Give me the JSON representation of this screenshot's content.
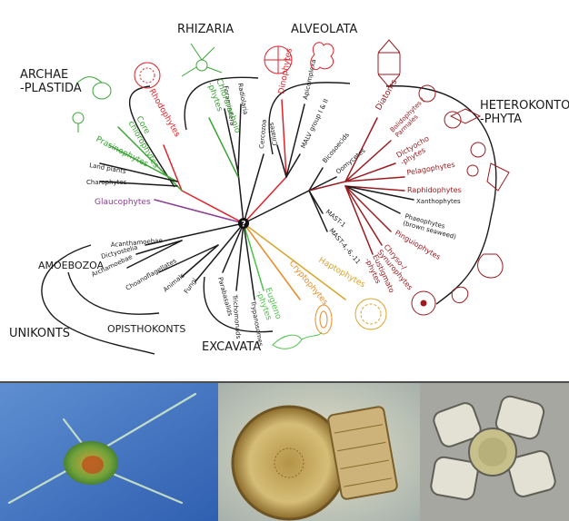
{
  "supergroups": {
    "archaeplastida": "ARCHAE\n-PLASTIDA",
    "rhizaria": "RHIZARIA",
    "alveolata": "ALVEOLATA",
    "heterokontophyta": "HETEROKONTO\n-PHYTA",
    "amoebozoa": "AMOEBOZOA",
    "unikonts": "UNIKONTS",
    "opisthokonts": "OPISTHOKONTS",
    "excavata": "EXCAVATA"
  },
  "taxa": {
    "rhodophytes": "Rhodophytes",
    "core_chlorophytes": "Core\nchlorophytes",
    "prasinophytes": "Prasinophytes",
    "land_plants": "Land plants",
    "charophytes": "Charophytes",
    "glaucophytes": "Glaucophytes",
    "foraminifera": "Foraminifera",
    "radiolaria": "Radiolaria",
    "chlorarachniophytes": "Chlorarachnio\n-phytes",
    "cercozoa": "Cercozoa",
    "dinophytes": "Dinophytes",
    "apicomplexa": "Apicomplexa",
    "mal_group": "MALV group I & II",
    "ciliates": "Ciliates",
    "bicosoecids": "Bicosoecids",
    "oomycetes": "Oomycetes",
    "diatoms": "Diatoms",
    "bolidophytes": "Bolidophytes /\nParmales",
    "dictyochophytes": "Dictyocho\n-phytes",
    "pelagophytes": "Pelagophytes",
    "raphidophytes": "Raphidophytes",
    "xanthophytes": "Xanthophytes",
    "phaeophytes": "Phaeophytes\n(brown seaweed)",
    "pinguiophytes": "Pinguiophytes",
    "chrysophytes": "Chryso-/\nSynurophytes",
    "eustigmatophytes": "Eustigmato\n-phytes",
    "mast_1": "MAST-1",
    "mast_4": "MAST-4,-6,-11",
    "acanthamoebae": "Acanthamoebae",
    "dictyostelia": "Dictyostelia",
    "archamoebae": "Archamoebae",
    "choanoflagellates": "Choanoflagellates",
    "animals": "Animals",
    "fungi": "Fungi",
    "parabasalids": "Parabasalids",
    "trichomonads": "Trichomonads",
    "trypanosomes": "Trypanosomes",
    "euglenophytes": "Eugleno\n-phytes",
    "cryptophytes": "Cryptophytes",
    "haptophytes": "Haptophytes"
  },
  "root_symbol": "?",
  "icons": [
    "alga-cell-icon",
    "diatom-icon",
    "dinoflagellate-icon",
    "radiolarian-icon",
    "coccolithophore-icon",
    "cryptophyte-icon",
    "euglena-icon"
  ],
  "colors": {
    "red": "#e0212a",
    "dark_red": "#9b1b20",
    "green": "#3aa535",
    "light_green": "#4dc24a",
    "purple": "#8b3d96",
    "orange": "#ec8a23",
    "gold": "#d8a42b",
    "black": "#1a1a1a"
  }
}
